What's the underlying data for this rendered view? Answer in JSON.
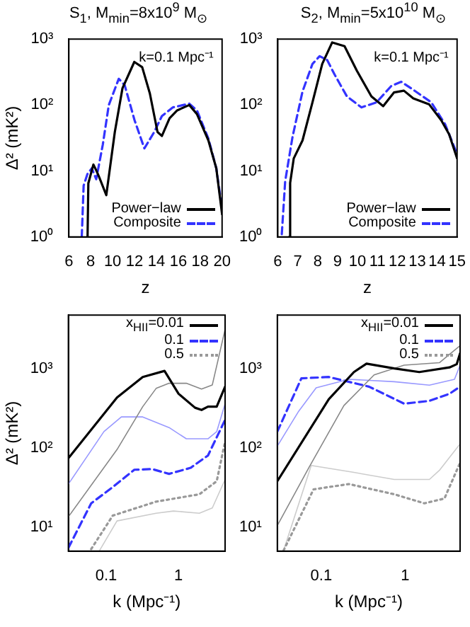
{
  "chart_data": [
    {
      "type": "line",
      "title": "S$_{1}$, M$_{min}$=8x10$^{9}$ M$_{⊙}$",
      "xlabel": "z",
      "ylabel": "Δ² (mK²)",
      "log": "y",
      "xlim": [
        6,
        20
      ],
      "ylim": [
        1,
        1000
      ],
      "xticks": [
        6,
        8,
        10,
        12,
        14,
        16,
        18,
        20
      ],
      "yticks": [
        {
          "value": 1,
          "label": "10⁰"
        },
        {
          "value": 10,
          "label": "10¹"
        },
        {
          "value": 100,
          "label": "10²"
        },
        {
          "value": 1000,
          "label": "10³"
        }
      ],
      "legend": "bottom right",
      "annotations": [
        "k=0.1 Mpc⁻¹"
      ],
      "series": [
        {
          "name": "Power−law",
          "color": "#000000",
          "line_style": "solid",
          "x": [
            7.71,
            7.78,
            8.24,
            8.53,
            8.78,
            9.42,
            10.2,
            10.9,
            11.98,
            12.7,
            13.4,
            14.1,
            14.5,
            15.2,
            15.9,
            17.0,
            17.7,
            18.75,
            19.47,
            20
          ],
          "values": [
            1,
            6.5,
            12.5,
            10,
            8,
            4.3,
            39,
            180,
            450,
            375,
            150,
            39,
            34,
            63,
            83,
            100,
            73,
            29,
            11,
            2.2
          ]
        },
        {
          "name": "Composite",
          "color": "#3333ff",
          "line_style": "dashed",
          "x": [
            7.18,
            7.35,
            7.7,
            8.1,
            8.5,
            9.1,
            9.65,
            10.56,
            11.1,
            12.0,
            12.9,
            13.8,
            14.5,
            15.5,
            17.0,
            17.7,
            18.75,
            19.47,
            20
          ],
          "values": [
            1,
            6,
            9,
            11,
            7.5,
            25,
            100,
            250,
            200,
            59,
            22,
            39,
            68,
            92,
            105,
            83,
            31,
            11,
            2.6
          ]
        }
      ]
    },
    {
      "type": "line",
      "title": "S$_{2}$, M$_{min}$=5x10$^{10}$ M$_{⊙}$",
      "xlabel": "z",
      "log": "y",
      "xlim": [
        6,
        15
      ],
      "ylim": [
        1,
        1000
      ],
      "xticks": [
        6,
        7,
        8,
        9,
        10,
        11,
        12,
        13,
        14,
        15
      ],
      "yticks": [
        {
          "value": 1,
          "label": "10⁰"
        },
        {
          "value": 10,
          "label": "10¹"
        },
        {
          "value": 100,
          "label": "10²"
        },
        {
          "value": 1000,
          "label": "10³"
        }
      ],
      "legend": "bottom right",
      "annotations": [
        "k=0.1 Mpc⁻¹"
      ],
      "series": [
        {
          "name": "Power−law",
          "color": "#000000",
          "line_style": "solid",
          "x": [
            6.57,
            6.62,
            6.8,
            7.24,
            7.74,
            8.23,
            8.73,
            9.35,
            9.97,
            10.7,
            11.29,
            11.83,
            12.33,
            12.8,
            13.6,
            14.2,
            14.6,
            15
          ],
          "values": [
            1,
            6.6,
            15.5,
            29,
            110,
            420,
            890,
            780,
            330,
            135,
            96,
            155,
            165,
            126,
            102,
            59,
            36,
            15.5
          ]
        },
        {
          "name": "Composite",
          "color": "#3333ff",
          "line_style": "dashed",
          "x": [
            6.2,
            6.37,
            6.74,
            7.24,
            7.74,
            8.1,
            8.48,
            8.85,
            9.47,
            10.2,
            10.96,
            11.7,
            12.2,
            12.8,
            13.7,
            14.4,
            15
          ],
          "values": [
            1.1,
            7,
            33,
            160,
            420,
            550,
            480,
            290,
            135,
            92,
            110,
            195,
            225,
            170,
            110,
            51,
            18
          ]
        }
      ]
    },
    {
      "type": "line",
      "xlabel": "k (Mpc⁻¹)",
      "ylabel": "Δ² (mK²)",
      "log": "xy",
      "xlim": [
        0.03,
        4.4
      ],
      "ylim": [
        5,
        4700
      ],
      "xticks": [
        0.1,
        1
      ],
      "yticks": [
        {
          "value": 10,
          "label": "10¹"
        },
        {
          "value": 100,
          "label": "10²"
        },
        {
          "value": 1000,
          "label": "10³"
        }
      ],
      "legend": "top right",
      "series": [
        {
          "name": "x$_{HII}$=0.01",
          "color": "#000000",
          "line_style": "solid",
          "x": [
            0.03,
            0.141,
            0.32,
            0.64,
            1.0,
            1.69,
            2.08,
            2.55,
            3.37,
            4.4
          ],
          "values": [
            74,
            430,
            780,
            930,
            480,
            320,
            300,
            330,
            330,
            590
          ]
        },
        {
          "color": "#888888",
          "line_style": "solid",
          "x": [
            0.03,
            0.141,
            0.32,
            0.49,
            0.74,
            1.28,
            2.08,
            2.93,
            4.4
          ],
          "values": [
            13.5,
            95,
            330,
            560,
            650,
            650,
            550,
            620,
            3100
          ]
        },
        {
          "color": "#9999ff",
          "line_style": "solid",
          "x": [
            0.03,
            0.093,
            0.162,
            0.32,
            0.74,
            1.28,
            2.55,
            3.37,
            4.4
          ],
          "values": [
            35,
            160,
            245,
            245,
            180,
            130,
            130,
            160,
            360
          ]
        },
        {
          "name": "0.1",
          "color": "#3333ff",
          "line_style": "dashed",
          "x": [
            0.03,
            0.062,
            0.123,
            0.245,
            0.43,
            0.74,
            1.47,
            2.55,
            4.4
          ],
          "values": [
            5.5,
            20,
            32,
            53,
            54,
            47,
            56,
            80,
            225
          ]
        },
        {
          "name": "0.5",
          "color": "#999999",
          "line_style": "dotted",
          "x": [
            0.062,
            0.123,
            0.49,
            1.94,
            3.37,
            4.4
          ],
          "values": [
            5.3,
            14,
            21,
            26,
            38,
            120
          ]
        },
        {
          "color": "#cccccc",
          "line_style": "solid",
          "x": [
            0.081,
            0.141,
            0.49,
            0.85,
            1.94,
            2.93,
            4.4
          ],
          "values": [
            5.1,
            12,
            15,
            16,
            15,
            17.5,
            40
          ]
        }
      ]
    },
    {
      "type": "line",
      "xlabel": "k (Mpc⁻¹)",
      "log": "xy",
      "xlim": [
        0.03,
        4.5
      ],
      "ylim": [
        5,
        4700
      ],
      "xticks": [
        0.1,
        1
      ],
      "yticks": [
        {
          "value": 10,
          "label": "10¹"
        },
        {
          "value": 100,
          "label": "10²"
        },
        {
          "value": 1000,
          "label": "10³"
        }
      ],
      "legend": "top right",
      "series": [
        {
          "name": "x$_{HII}$=0.01",
          "color": "#000000",
          "line_style": "solid",
          "x": [
            0.03,
            0.123,
            0.245,
            0.346,
            0.74,
            1.47,
            3.37,
            4.1,
            4.5
          ],
          "values": [
            38,
            410,
            900,
            1150,
            1000,
            900,
            1030,
            1130,
            1550
          ]
        },
        {
          "color": "#888888",
          "line_style": "solid",
          "x": [
            0.03,
            0.071,
            0.186,
            0.426,
            0.97,
            2.55,
            4.4
          ],
          "values": [
            10.5,
            56,
            340,
            830,
            1100,
            1180,
            1900
          ]
        },
        {
          "color": "#9999ff",
          "line_style": "solid",
          "x": [
            0.03,
            0.054,
            0.087,
            0.213,
            0.74,
            1.94,
            3.86,
            4.5
          ],
          "values": [
            105,
            290,
            570,
            730,
            680,
            615,
            730,
            1100
          ]
        },
        {
          "name": "0.1",
          "color": "#3333ff",
          "line_style": "dashed",
          "x": [
            0.03,
            0.058,
            0.123,
            0.37,
            0.97,
            1.94,
            3.37,
            4.5
          ],
          "values": [
            160,
            750,
            780,
            590,
            360,
            390,
            480,
            590
          ]
        },
        {
          "name": "0.5",
          "color": "#999999",
          "line_style": "dotted",
          "x": [
            0.0356,
            0.081,
            0.213,
            0.74,
            1.69,
            2.93,
            4.5
          ],
          "values": [
            5.1,
            30,
            35,
            26,
            20,
            23,
            65
          ]
        },
        {
          "color": "#cccccc",
          "line_style": "solid",
          "x": [
            0.0356,
            0.076,
            0.245,
            0.74,
            1.94,
            2.55,
            4.5
          ],
          "values": [
            5.1,
            60,
            49,
            40,
            40,
            52,
            112
          ]
        }
      ]
    }
  ]
}
